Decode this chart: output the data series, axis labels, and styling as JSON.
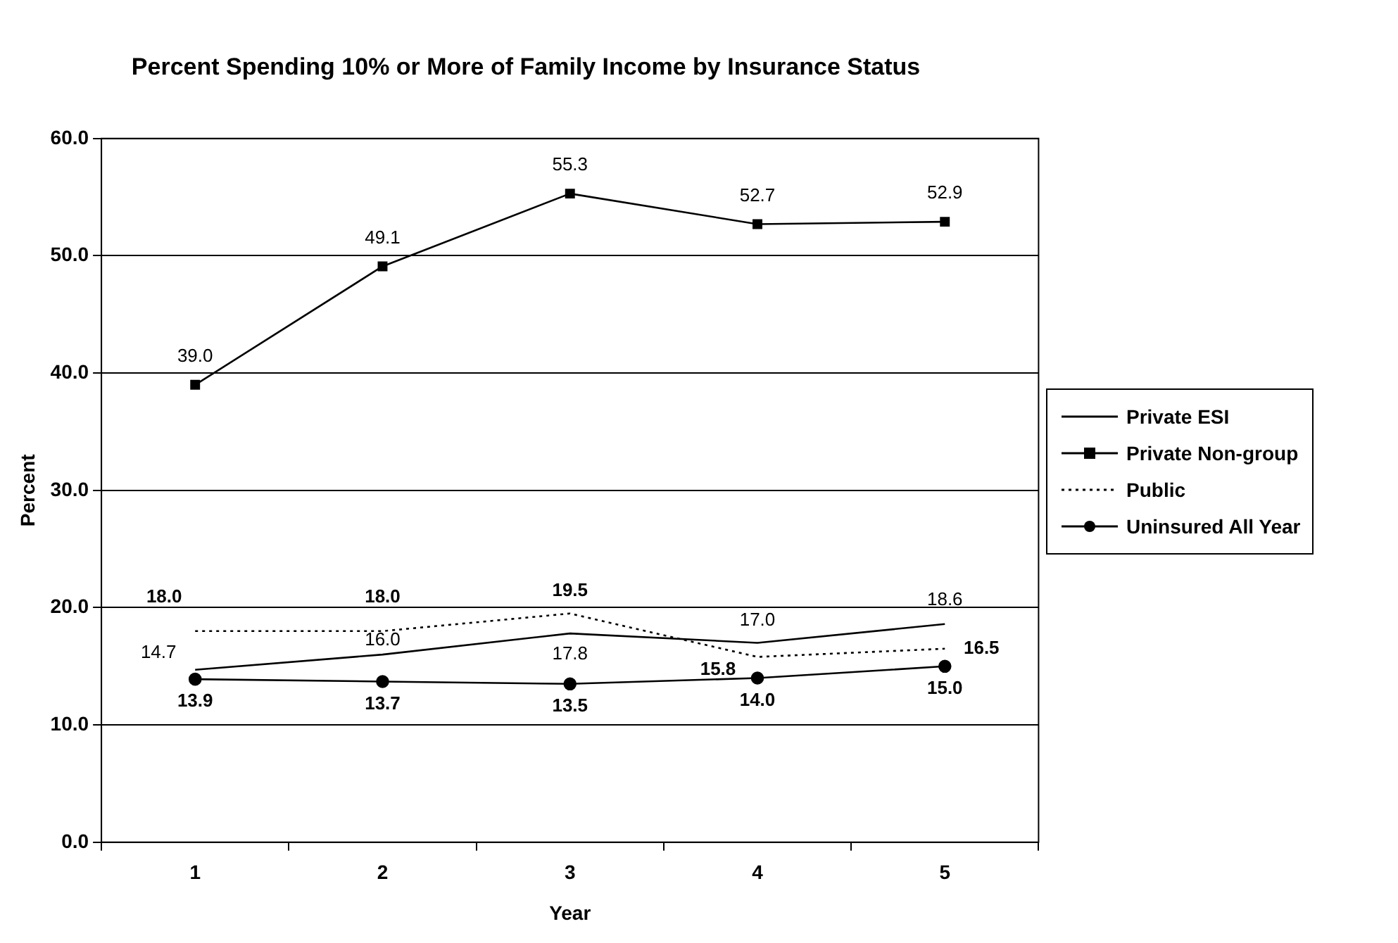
{
  "chart_data": {
    "type": "line",
    "title": "Percent Spending 10% or More of Family Income by Insurance Status",
    "xlabel": "Year",
    "ylabel": "Percent",
    "categories": [
      "1",
      "2",
      "3",
      "4",
      "5"
    ],
    "series": [
      {
        "name": "Private ESI",
        "color": "#000000",
        "values": [
          14.7,
          16.0,
          17.8,
          17.0,
          18.6
        ],
        "value_labels": [
          "14.7",
          "16.0",
          "17.8",
          "17.0",
          "18.6"
        ],
        "marker": "none",
        "line_style": "solid"
      },
      {
        "name": "Private Non-group",
        "color": "#000000",
        "values": [
          39.0,
          49.1,
          55.3,
          52.7,
          52.9
        ],
        "value_labels": [
          "39.0",
          "49.1",
          "55.3",
          "52.7",
          "52.9"
        ],
        "marker": "square",
        "line_style": "solid"
      },
      {
        "name": "Public",
        "color": "#000000",
        "values": [
          18.0,
          18.0,
          19.5,
          15.8,
          16.5
        ],
        "value_labels": [
          "18.0",
          "18.0",
          "19.5",
          "15.8",
          "16.5"
        ],
        "marker": "none",
        "line_style": "dotted"
      },
      {
        "name": "Uninsured All Year",
        "color": "#000000",
        "values": [
          13.9,
          13.7,
          13.5,
          14.0,
          15.0
        ],
        "value_labels": [
          "13.9",
          "13.7",
          "13.5",
          "14.0",
          "15.0"
        ],
        "marker": "circle",
        "line_style": "solid"
      }
    ],
    "ylim": [
      0,
      60
    ],
    "yticks": [
      {
        "value": 0,
        "label": "0.0"
      },
      {
        "value": 10,
        "label": "10.0"
      },
      {
        "value": 20,
        "label": "20.0"
      },
      {
        "value": 30,
        "label": "30.0"
      },
      {
        "value": 40,
        "label": "40.0"
      },
      {
        "value": 50,
        "label": "50.0"
      },
      {
        "value": 60,
        "label": "60.0"
      }
    ],
    "grid": "y",
    "legend": "right",
    "data_labels": true
  }
}
